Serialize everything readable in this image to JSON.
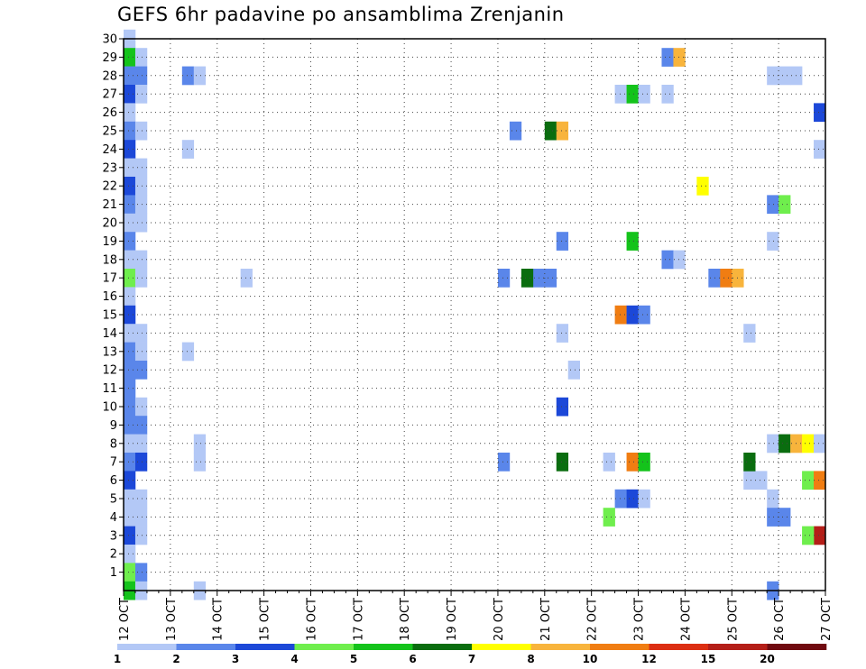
{
  "chart_data": {
    "type": "heatmap",
    "title": "GEFS 6hr padavine po ansamblima Zrenjanin",
    "xlabel": "",
    "ylabel": "",
    "x_tick_labels": [
      "12 OCT",
      "13 OCT",
      "14 OCT",
      "15 OCT",
      "16 OCT",
      "17 OCT",
      "18 OCT",
      "19 OCT",
      "20 OCT",
      "21 OCT",
      "22 OCT",
      "23 OCT",
      "24 OCT",
      "25 OCT",
      "26 OCT",
      "27 OCT"
    ],
    "y_tick_labels": [
      "1",
      "2",
      "3",
      "4",
      "5",
      "6",
      "7",
      "8",
      "9",
      "10",
      "11",
      "12",
      "13",
      "14",
      "15",
      "16",
      "17",
      "18",
      "19",
      "20",
      "21",
      "22",
      "23",
      "24",
      "25",
      "26",
      "27",
      "28",
      "29",
      "30"
    ],
    "xlim": [
      0,
      60
    ],
    "ylim": [
      0,
      30
    ],
    "x_step_note": "6-hour steps; 4 steps per day",
    "grid": true,
    "colorbar": {
      "labels": [
        "1",
        "2",
        "3",
        "4",
        "5",
        "6",
        "7",
        "8",
        "10",
        "12",
        "15",
        "20"
      ],
      "colors": [
        "#b3c8f6",
        "#5a86ea",
        "#1c48d8",
        "#6fee4d",
        "#14c31b",
        "#0a6d0f",
        "#ffff00",
        "#f8b43c",
        "#f07d12",
        "#dc2e12",
        "#b41e18",
        "#700a10"
      ]
    },
    "cells": [
      [
        0,
        30,
        1
      ],
      [
        0,
        29,
        5
      ],
      [
        1,
        29,
        1
      ],
      [
        0,
        28,
        2
      ],
      [
        1,
        28,
        2
      ],
      [
        0,
        27,
        3
      ],
      [
        1,
        27,
        1
      ],
      [
        0,
        26,
        1
      ],
      [
        0,
        25,
        2
      ],
      [
        1,
        25,
        1
      ],
      [
        0,
        24,
        3
      ],
      [
        0,
        23,
        1
      ],
      [
        1,
        23,
        1
      ],
      [
        0,
        22,
        3
      ],
      [
        1,
        22,
        1
      ],
      [
        0,
        21,
        2
      ],
      [
        1,
        21,
        1
      ],
      [
        0,
        20,
        1
      ],
      [
        1,
        20,
        1
      ],
      [
        0,
        19,
        2
      ],
      [
        0,
        18,
        1
      ],
      [
        1,
        18,
        1
      ],
      [
        0,
        17,
        4
      ],
      [
        1,
        17,
        1
      ],
      [
        0,
        16,
        1
      ],
      [
        0,
        15,
        3
      ],
      [
        0,
        14,
        1
      ],
      [
        1,
        14,
        1
      ],
      [
        0,
        13,
        2
      ],
      [
        1,
        13,
        1
      ],
      [
        0,
        12,
        2
      ],
      [
        1,
        12,
        2
      ],
      [
        0,
        11,
        2
      ],
      [
        0,
        10,
        2
      ],
      [
        1,
        10,
        1
      ],
      [
        0,
        9,
        2
      ],
      [
        1,
        9,
        2
      ],
      [
        0,
        8,
        1
      ],
      [
        1,
        8,
        1
      ],
      [
        0,
        7,
        2
      ],
      [
        1,
        7,
        3
      ],
      [
        0,
        6,
        3
      ],
      [
        0,
        5,
        1
      ],
      [
        1,
        5,
        1
      ],
      [
        0,
        4,
        1
      ],
      [
        1,
        4,
        1
      ],
      [
        0,
        3,
        3
      ],
      [
        1,
        3,
        1
      ],
      [
        0,
        2,
        1
      ],
      [
        0,
        1,
        4
      ],
      [
        1,
        1,
        2
      ],
      [
        0,
        0,
        5
      ],
      [
        1,
        0,
        1
      ],
      [
        5,
        28,
        2
      ],
      [
        6,
        28,
        1
      ],
      [
        5,
        24,
        1
      ],
      [
        5,
        13,
        1
      ],
      [
        6,
        8,
        1
      ],
      [
        6,
        7,
        1
      ],
      [
        6,
        0,
        1
      ],
      [
        10,
        17,
        1
      ],
      [
        33,
        25,
        2
      ],
      [
        36,
        25,
        6
      ],
      [
        37,
        25,
        8
      ],
      [
        32,
        17,
        2
      ],
      [
        35,
        17,
        2
      ],
      [
        36,
        17,
        2
      ],
      [
        34,
        17,
        6
      ],
      [
        37,
        19,
        2
      ],
      [
        37,
        14,
        1
      ],
      [
        38,
        12,
        1
      ],
      [
        37,
        10,
        3
      ],
      [
        37,
        7,
        6
      ],
      [
        32,
        7,
        2
      ],
      [
        42,
        27,
        1
      ],
      [
        43,
        27,
        5
      ],
      [
        44,
        27,
        1
      ],
      [
        46,
        27,
        1
      ],
      [
        46,
        29,
        2
      ],
      [
        47,
        29,
        8
      ],
      [
        46,
        18,
        2
      ],
      [
        47,
        18,
        1
      ],
      [
        43,
        19,
        5
      ],
      [
        42,
        15,
        9
      ],
      [
        43,
        15,
        3
      ],
      [
        44,
        15,
        2
      ],
      [
        41,
        7,
        1
      ],
      [
        43,
        7,
        9
      ],
      [
        44,
        7,
        5
      ],
      [
        42,
        5,
        2
      ],
      [
        43,
        5,
        3
      ],
      [
        44,
        5,
        1
      ],
      [
        41,
        4,
        4
      ],
      [
        49,
        22,
        7
      ],
      [
        50,
        17,
        2
      ],
      [
        51,
        17,
        9
      ],
      [
        52,
        17,
        8
      ],
      [
        55,
        21,
        2
      ],
      [
        56,
        21,
        4
      ],
      [
        55,
        19,
        1
      ],
      [
        53,
        14,
        1
      ],
      [
        55,
        5,
        1
      ],
      [
        55,
        4,
        2
      ],
      [
        56,
        4,
        2
      ],
      [
        54,
        6,
        1
      ],
      [
        53,
        6,
        1
      ],
      [
        53,
        7,
        6
      ],
      [
        55,
        8,
        1
      ],
      [
        56,
        8,
        6
      ],
      [
        57,
        8,
        8
      ],
      [
        58,
        8,
        7
      ],
      [
        59,
        8,
        1
      ],
      [
        58,
        6,
        4
      ],
      [
        59,
        6,
        9
      ],
      [
        59,
        3,
        11
      ],
      [
        58,
        3,
        4
      ],
      [
        55,
        0,
        2
      ],
      [
        55,
        28,
        1
      ],
      [
        56,
        28,
        1
      ],
      [
        57,
        28,
        1
      ],
      [
        59,
        26,
        3
      ],
      [
        59,
        24,
        1
      ]
    ]
  }
}
